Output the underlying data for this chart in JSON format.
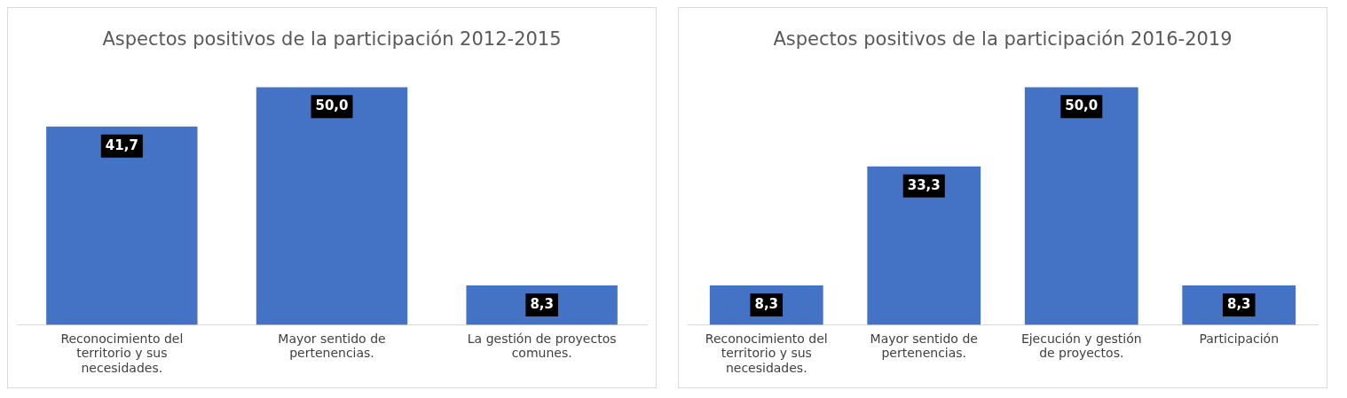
{
  "chart_data": [
    {
      "type": "bar",
      "title": "Aspectos positivos de la participación 2012-2015",
      "categories": [
        "Reconocimiento del territorio y sus necesidades.",
        "Mayor sentido de pertenencias.",
        "La gestión de proyectos comunes."
      ],
      "values": [
        41.7,
        50.0,
        8.3
      ],
      "value_labels": [
        "41,7",
        "50,0",
        "8,3"
      ],
      "color": "#4472c4",
      "grid": false,
      "legend": false,
      "tick_labels": "x"
    },
    {
      "type": "bar",
      "title": "Aspectos positivos de la participación 2016-2019",
      "categories": [
        "Reconocimiento del territorio y sus necesidades.",
        "Mayor sentido de pertenencias.",
        "Ejecución y gestión de proyectos.",
        "Participación"
      ],
      "values": [
        8.3,
        33.3,
        50.0,
        8.3
      ],
      "value_labels": [
        "8,3",
        "33,3",
        "50,0",
        "8,3"
      ],
      "color": "#4472c4",
      "grid": false,
      "legend": false,
      "tick_labels": "x"
    }
  ]
}
